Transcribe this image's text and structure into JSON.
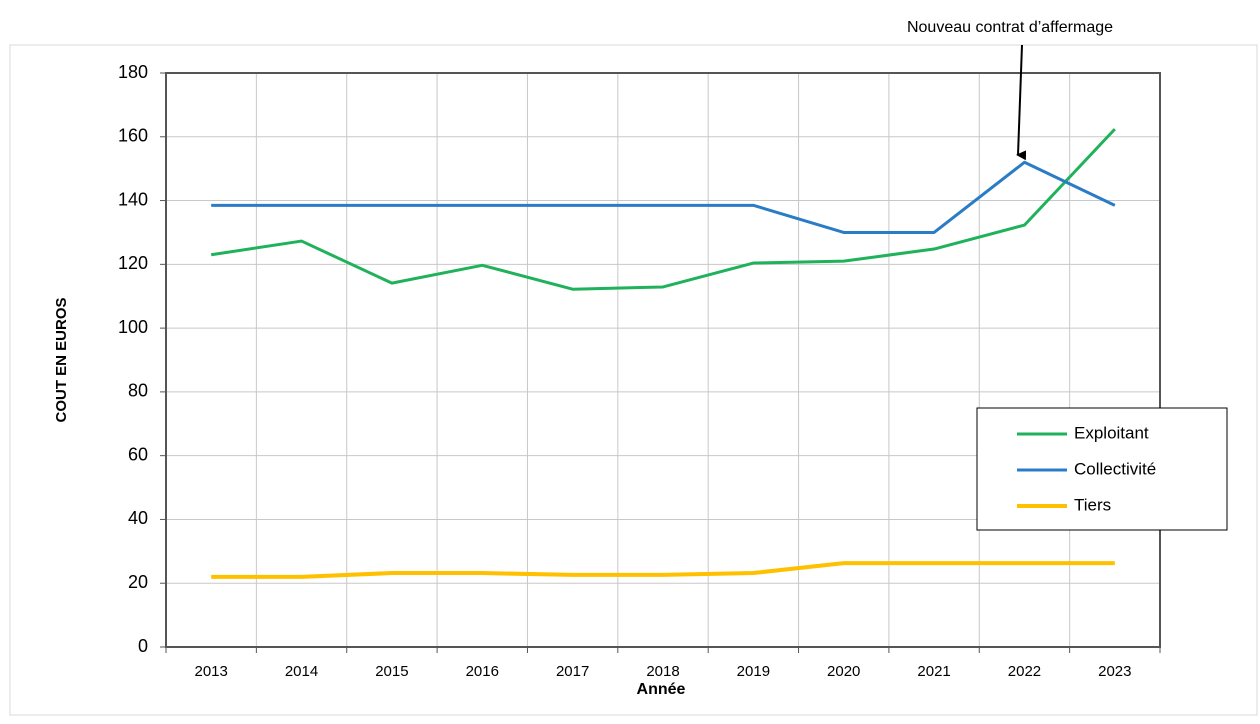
{
  "chart_data": {
    "type": "line",
    "annotation": "Nouveau contrat d’affermage",
    "xlabel": "Année",
    "ylabel": "COUT EN EUROS",
    "categories": [
      "2013",
      "2014",
      "2015",
      "2016",
      "2017",
      "2018",
      "2019",
      "2020",
      "2021",
      "2022",
      "2023"
    ],
    "series": [
      {
        "name": "Exploitant",
        "color": "#1fb25a",
        "values": [
          123,
          127.3,
          114.1,
          119.7,
          112.2,
          112.9,
          120.4,
          121,
          124.8,
          132.3,
          162.4
        ]
      },
      {
        "name": "Collectivité",
        "color": "#2a7cc7",
        "values": [
          138.5,
          138.5,
          138.5,
          138.5,
          138.5,
          138.5,
          138.5,
          130,
          130,
          152,
          138.5
        ]
      },
      {
        "name": "Tiers",
        "color": "#ffc000",
        "values": [
          22,
          22,
          23.2,
          23.2,
          22.6,
          22.6,
          23.2,
          26.3,
          26.3,
          26.3,
          26.3
        ]
      }
    ],
    "ylim": [
      0,
      180
    ],
    "yticks": [
      0,
      20,
      40,
      60,
      80,
      100,
      120,
      140,
      160,
      180
    ],
    "grid": true,
    "legend": "right"
  }
}
